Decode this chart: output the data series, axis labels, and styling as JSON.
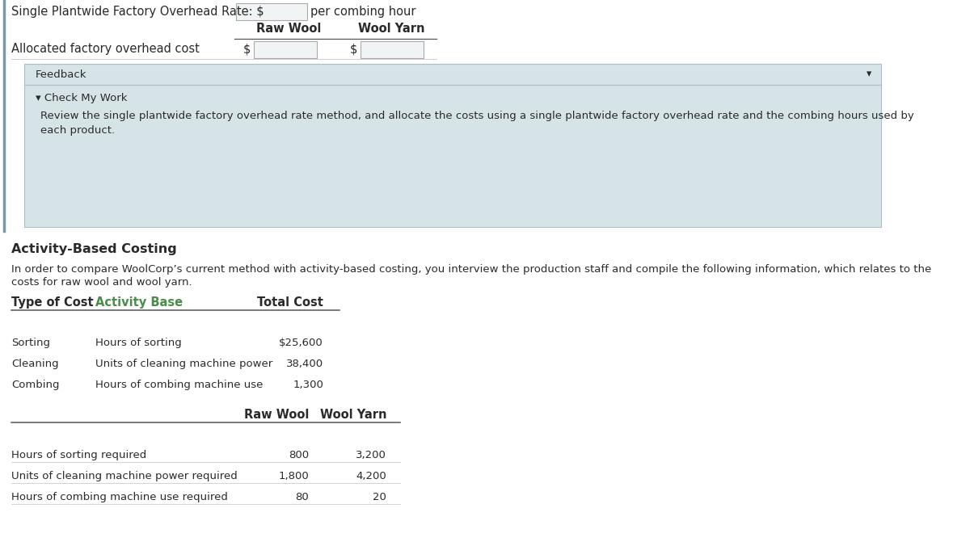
{
  "title_line": "Single Plantwide Factory Overhead Rate: $",
  "title_line_suffix": "per combing hour",
  "col_headers": [
    "Raw Wool",
    "Wool Yarn"
  ],
  "row1_label": "Allocated factory overhead cost",
  "feedback_label": "Feedback",
  "check_my_work_label": "▾ Check My Work",
  "feedback_text_line1": "Review the single plantwide factory overhead rate method, and allocate the costs using a single plantwide factory overhead rate and the combing hours used by",
  "feedback_text_line2": "each product.",
  "section2_title": "Activity-Based Costing",
  "section2_intro_line1": "In order to compare WoolCorp’s current method with activity-based costing, you interview the production staff and compile the following information, which relates to the",
  "section2_intro_line2": "costs for raw wool and wool yarn.",
  "table1_headers": [
    "Type of Cost",
    "Activity Base",
    "Total Cost"
  ],
  "table1_rows": [
    [
      "Sorting",
      "Hours of sorting",
      "$25,600"
    ],
    [
      "Cleaning",
      "Units of cleaning machine power",
      "38,400"
    ],
    [
      "Combing",
      "Hours of combing machine use",
      "1,300"
    ]
  ],
  "table2_col_headers": [
    "Raw Wool",
    "Wool Yarn"
  ],
  "table2_rows": [
    [
      "Hours of sorting required",
      "800",
      "3,200"
    ],
    [
      "Units of cleaning machine power required",
      "1,800",
      "4,200"
    ],
    [
      "Hours of combing machine use required",
      "80",
      "20"
    ]
  ],
  "bg_color": "#ffffff",
  "feedback_bg": "#d6e4e8",
  "feedback_border": "#aabfc5",
  "activity_base_color": "#4a8c4a",
  "text_color": "#2a2a2a",
  "input_box_color": "#f0f4f5",
  "input_box_border": "#aaaaaa",
  "line_color_dark": "#555555",
  "line_color_light": "#cccccc",
  "left_border_color": "#7799aa",
  "font_size": 10.5,
  "small_font_size": 9.5,
  "bold_font_size": 10.5
}
